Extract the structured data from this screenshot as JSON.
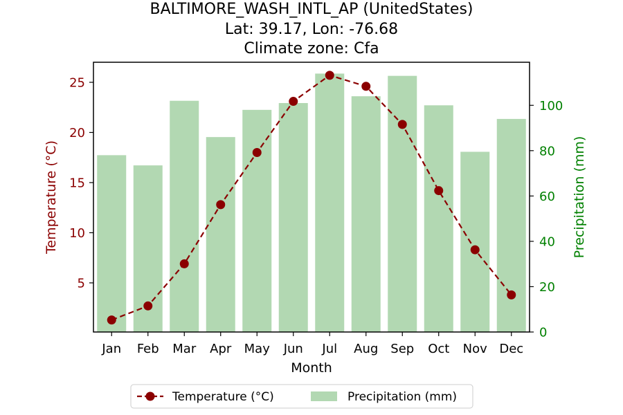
{
  "chart_data": {
    "type": "bar+line",
    "title_lines": [
      "BALTIMORE_WASH_INTL_AP (UnitedStates)",
      "Lat: 39.17, Lon: -76.68",
      "Climate zone: Cfa"
    ],
    "categories": [
      "Jan",
      "Feb",
      "Mar",
      "Apr",
      "May",
      "Jun",
      "Jul",
      "Aug",
      "Sep",
      "Oct",
      "Nov",
      "Dec"
    ],
    "xlabel": "Month",
    "ylabel_left": "Temperature (°C)",
    "ylabel_right": "Precipitation (mm)",
    "ylim_left": [
      0.1,
      27
    ],
    "ylim_right": [
      0,
      119
    ],
    "yticks_left": [
      5,
      10,
      15,
      20,
      25
    ],
    "yticks_right": [
      0,
      20,
      40,
      60,
      80,
      100
    ],
    "grid": false,
    "legend_position": "bottom-center",
    "series": [
      {
        "name": "Temperature (°C)",
        "kind": "line",
        "axis": "left",
        "color": "#8b0000",
        "line_style": "dashed",
        "marker": "circle",
        "values": [
          1.3,
          2.7,
          6.9,
          12.8,
          18.0,
          23.1,
          25.7,
          24.6,
          20.8,
          14.2,
          8.3,
          3.8
        ]
      },
      {
        "name": "Precipitation (mm)",
        "kind": "bar",
        "axis": "right",
        "color": "#b2d8b2",
        "values": [
          78,
          73.5,
          102,
          86,
          98,
          101,
          114,
          104,
          113,
          100,
          79.5,
          94
        ]
      }
    ],
    "left_axis_color": "#8b0000",
    "right_axis_color": "#008000"
  }
}
